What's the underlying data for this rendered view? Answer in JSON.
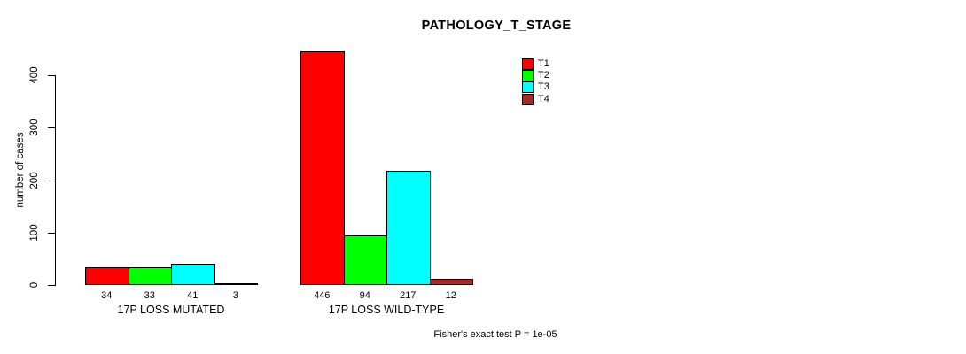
{
  "title": "PATHOLOGY_T_STAGE",
  "annotation": "Fisher's exact test P = 1e-05",
  "chart_data": {
    "type": "bar",
    "title": "PATHOLOGY_T_STAGE",
    "xlabel": "",
    "ylabel": "number of cases",
    "ylim": [
      0,
      446
    ],
    "yticks": [
      0,
      100,
      200,
      300,
      400
    ],
    "grid": false,
    "legend_position": "top-right",
    "bar_value_labels": true,
    "categories": [
      "17P LOSS MUTATED",
      "17P LOSS WILD-TYPE"
    ],
    "series": [
      {
        "name": "T1",
        "color": "#ff0000",
        "values": [
          34,
          446
        ]
      },
      {
        "name": "T2",
        "color": "#00ff00",
        "values": [
          33,
          94
        ]
      },
      {
        "name": "T3",
        "color": "#00ffff",
        "values": [
          41,
          217
        ]
      },
      {
        "name": "T4",
        "color": "#a52a2a",
        "values": [
          3,
          12
        ]
      }
    ]
  }
}
